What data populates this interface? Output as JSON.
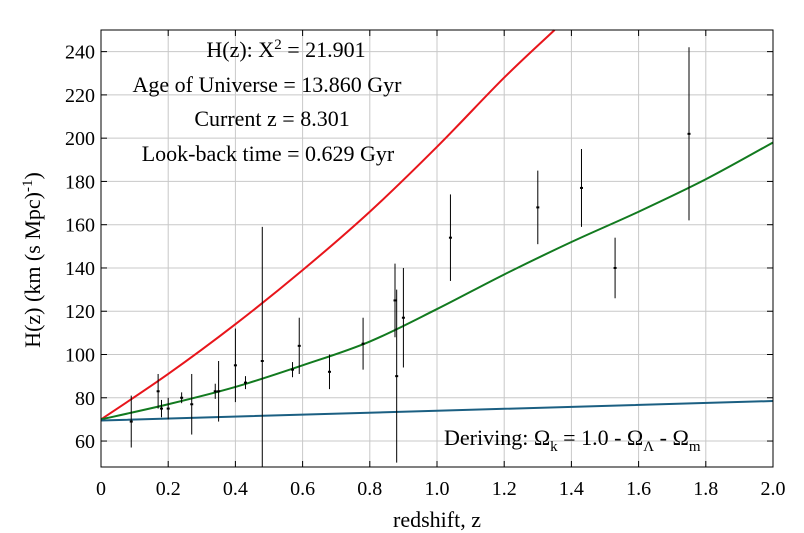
{
  "chart_data": {
    "type": "line",
    "xlabel": "redshift, z",
    "ylabel_parts": {
      "main": "H(z) (km (s Mpc)",
      "sup": "-1",
      "tail": ")"
    },
    "xlim": [
      0,
      2.0
    ],
    "ylim": [
      48,
      250
    ],
    "grid": true,
    "x_ticks": [
      0,
      0.2,
      0.4,
      0.6,
      0.8,
      1.0,
      1.2,
      1.4,
      1.6,
      1.8,
      2.0
    ],
    "x_tick_labels": [
      "0",
      "0.2",
      "0.4",
      "0.6",
      "0.8",
      "1.0",
      "1.2",
      "1.4",
      "1.6",
      "1.8",
      "2.0"
    ],
    "y_ticks": [
      60,
      80,
      100,
      120,
      140,
      160,
      180,
      200,
      220,
      240
    ],
    "y_tick_labels": [
      "60",
      "80",
      "100",
      "120",
      "140",
      "160",
      "180",
      "200",
      "220",
      "240"
    ],
    "series": [
      {
        "name": "red model",
        "color": "#e8151b",
        "x": [
          0,
          0.2,
          0.4,
          0.6,
          0.8,
          1.0,
          1.2,
          1.35
        ],
        "y": [
          70,
          91,
          114,
          139,
          166,
          196,
          228,
          250
        ]
      },
      {
        "name": "green model",
        "color": "#127a1f",
        "x": [
          0,
          0.2,
          0.4,
          0.6,
          0.8,
          1.0,
          1.2,
          1.4,
          1.6,
          1.8,
          2.0
        ],
        "y": [
          70,
          77,
          85,
          95,
          106,
          121,
          137,
          152,
          166,
          181,
          198
        ]
      },
      {
        "name": "blue model",
        "color": "#1b5f82",
        "x": [
          0,
          2.0
        ],
        "y": [
          69.5,
          78.5
        ]
      }
    ],
    "observations": {
      "color": "#000000",
      "points": [
        {
          "z": 0.09,
          "h": 69,
          "err": 12
        },
        {
          "z": 0.17,
          "h": 83,
          "err": 8
        },
        {
          "z": 0.18,
          "h": 75,
          "err": 4
        },
        {
          "z": 0.2,
          "h": 75,
          "err": 5
        },
        {
          "z": 0.24,
          "h": 80,
          "err": 2.5
        },
        {
          "z": 0.27,
          "h": 77,
          "err": 14
        },
        {
          "z": 0.34,
          "h": 83,
          "err": 3.5
        },
        {
          "z": 0.35,
          "h": 83,
          "err": 14
        },
        {
          "z": 0.4,
          "h": 95,
          "err": 17
        },
        {
          "z": 0.43,
          "h": 87,
          "err": 3
        },
        {
          "z": 0.48,
          "h": 97,
          "err": 62
        },
        {
          "z": 0.57,
          "h": 93,
          "err": 3.5
        },
        {
          "z": 0.59,
          "h": 104,
          "err": 13
        },
        {
          "z": 0.68,
          "h": 92,
          "err": 8
        },
        {
          "z": 0.78,
          "h": 105,
          "err": 12
        },
        {
          "z": 0.875,
          "h": 125,
          "err": 17
        },
        {
          "z": 0.88,
          "h": 90,
          "err": 40
        },
        {
          "z": 0.9,
          "h": 117,
          "err": 23
        },
        {
          "z": 1.04,
          "h": 154,
          "err": 20
        },
        {
          "z": 1.3,
          "h": 168,
          "err": 17
        },
        {
          "z": 1.43,
          "h": 177,
          "err": 18
        },
        {
          "z": 1.53,
          "h": 140,
          "err": 14
        },
        {
          "z": 1.75,
          "h": 202,
          "err": 40
        }
      ]
    },
    "annotations": {
      "chi_label": "H(z): X",
      "chi_sup": "2",
      "chi_value": " = 21.901",
      "age": "Age of Universe = 13.860 Gyr",
      "current_z": "Current z = 8.301",
      "lookback": "Look-back time = 0.629 Gyr",
      "deriving_prefix": "Deriving: Ω",
      "deriving_sub_k": "k",
      "deriving_mid": " = 1.0 - Ω",
      "deriving_sub_lambda": "Λ",
      "deriving_sep": " - Ω",
      "deriving_sub_m": "m"
    }
  }
}
